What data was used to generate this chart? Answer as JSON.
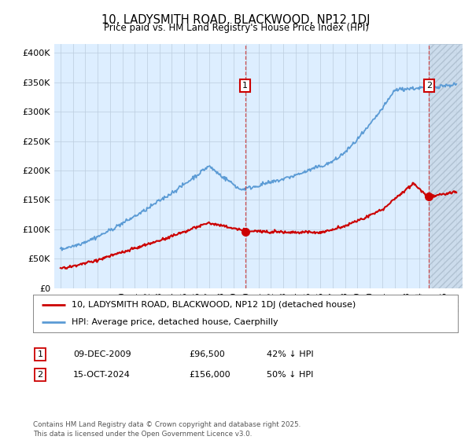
{
  "title": "10, LADYSMITH ROAD, BLACKWOOD, NP12 1DJ",
  "subtitle": "Price paid vs. HM Land Registry's House Price Index (HPI)",
  "ylabel_ticks": [
    "£0",
    "£50K",
    "£100K",
    "£150K",
    "£200K",
    "£250K",
    "£300K",
    "£350K",
    "£400K"
  ],
  "ytick_values": [
    0,
    50000,
    100000,
    150000,
    200000,
    250000,
    300000,
    350000,
    400000
  ],
  "ylim": [
    0,
    415000
  ],
  "xlim_start": 1994.5,
  "xlim_end": 2027.5,
  "hpi_color": "#5b9bd5",
  "price_color": "#cc0000",
  "plot_bg_color": "#ddeeff",
  "hatch_color": "#c8d8e8",
  "marker1_date_x": 2009.93,
  "marker2_date_x": 2024.79,
  "marker1_y": 96500,
  "marker2_y": 156000,
  "legend_line1": "10, LADYSMITH ROAD, BLACKWOOD, NP12 1DJ (detached house)",
  "legend_line2": "HPI: Average price, detached house, Caerphilly",
  "table_row1": [
    "1",
    "09-DEC-2009",
    "£96,500",
    "42% ↓ HPI"
  ],
  "table_row2": [
    "2",
    "15-OCT-2024",
    "£156,000",
    "50% ↓ HPI"
  ],
  "footer": "Contains HM Land Registry data © Crown copyright and database right 2025.\nThis data is licensed under the Open Government Licence v3.0.",
  "background_color": "#ffffff",
  "grid_color": "#bbccdd",
  "hpi_linewidth": 1.3,
  "price_linewidth": 1.5
}
